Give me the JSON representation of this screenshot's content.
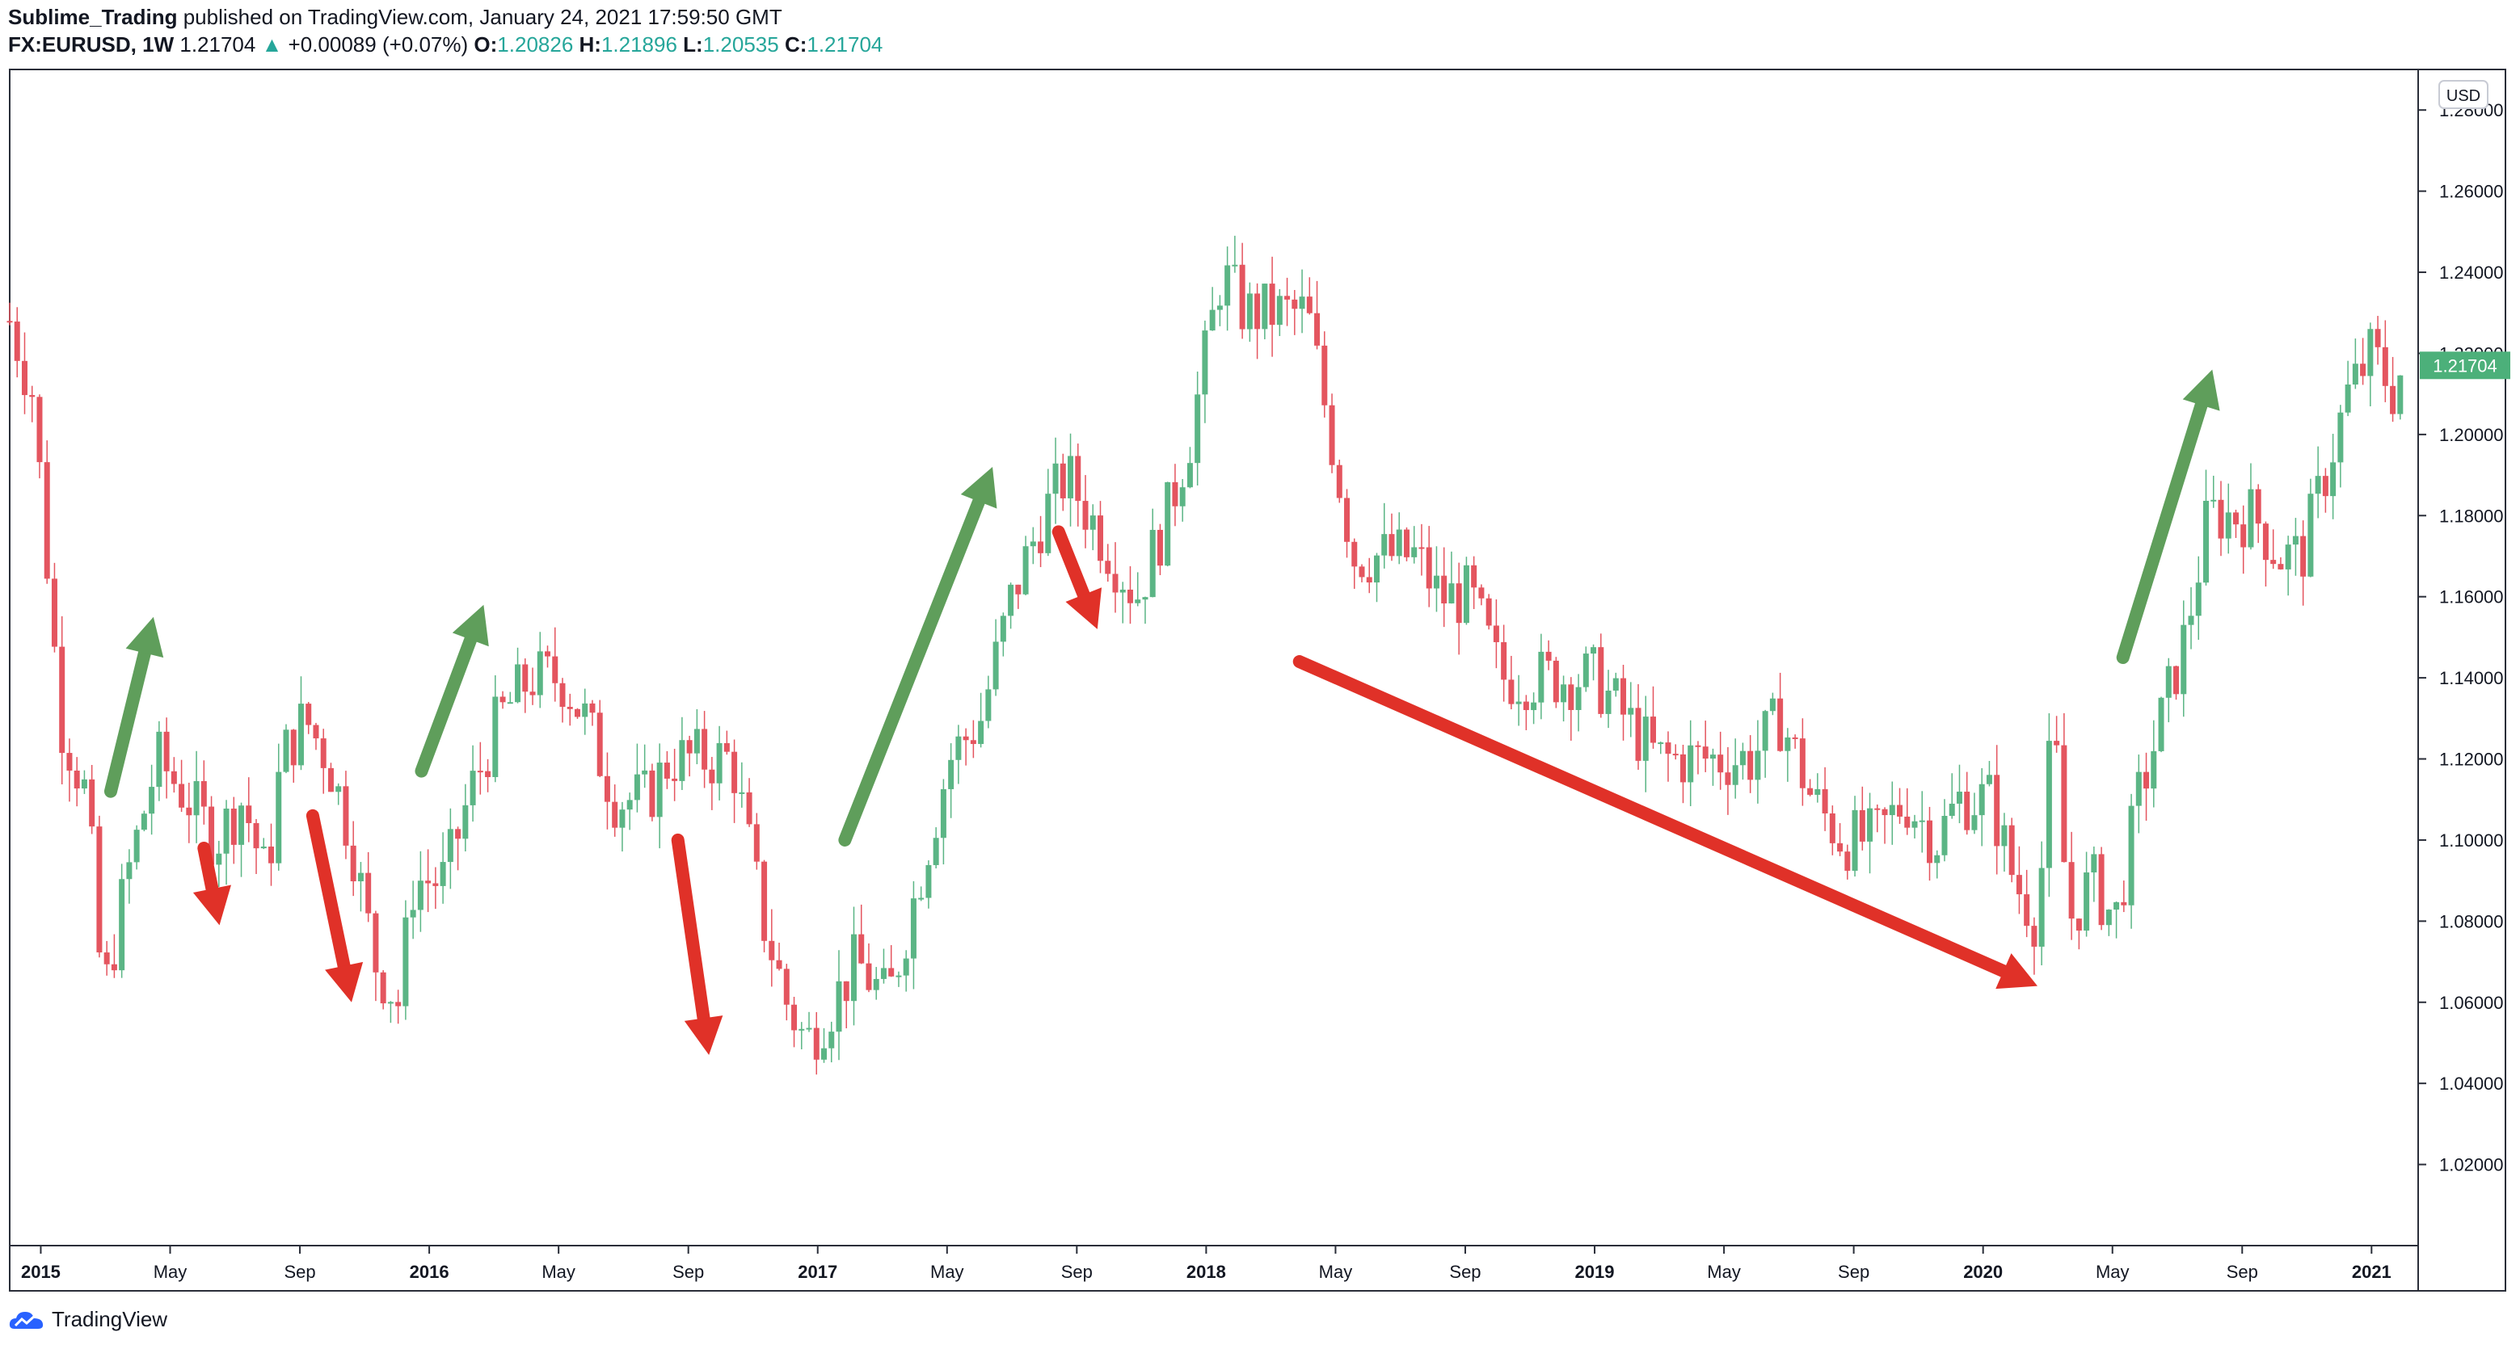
{
  "header": {
    "author": "Sublime_Trading",
    "published_text": " published on TradingView.com, January 24, 2021 17:59:50 GMT",
    "symbol": "FX:EURUSD, 1W",
    "last_price": "1.21704",
    "change_arrow": "▲",
    "change": "+0.00089 (+0.07%)",
    "o_label": "O:",
    "o_value": "1.20826",
    "h_label": "H:",
    "h_value": "1.21896",
    "l_label": "L:",
    "l_value": "1.20535",
    "c_label": "C:",
    "c_value": "1.21704"
  },
  "footer": {
    "brand": "TradingView",
    "logo_icon": "tradingview-cloud-icon"
  },
  "colors": {
    "up": "#5bb585",
    "down": "#e4555f",
    "arrow_up": "#5f9e5b",
    "arrow_down": "#e03128",
    "price_tag": "#4cb07a",
    "text": "#131722"
  },
  "chart_data": {
    "type": "candlestick",
    "title": "FX:EURUSD, 1W",
    "currency_label": "USD",
    "current_price_label": "1.21704",
    "ylim": [
      1.0,
      1.29
    ],
    "y_ticks": [
      "1.28000",
      "1.26000",
      "1.24000",
      "1.22000",
      "1.20000",
      "1.18000",
      "1.16000",
      "1.14000",
      "1.12000",
      "1.10000",
      "1.08000",
      "1.06000",
      "1.04000",
      "1.02000"
    ],
    "x_ticks": [
      {
        "label": "2015",
        "bold": true,
        "t": 2015.0
      },
      {
        "label": "May",
        "bold": false,
        "t": 2015.333
      },
      {
        "label": "Sep",
        "bold": false,
        "t": 2015.667
      },
      {
        "label": "2016",
        "bold": true,
        "t": 2016.0
      },
      {
        "label": "May",
        "bold": false,
        "t": 2016.333
      },
      {
        "label": "Sep",
        "bold": false,
        "t": 2016.667
      },
      {
        "label": "2017",
        "bold": true,
        "t": 2017.0
      },
      {
        "label": "May",
        "bold": false,
        "t": 2017.333
      },
      {
        "label": "Sep",
        "bold": false,
        "t": 2017.667
      },
      {
        "label": "2018",
        "bold": true,
        "t": 2018.0
      },
      {
        "label": "May",
        "bold": false,
        "t": 2018.333
      },
      {
        "label": "Sep",
        "bold": false,
        "t": 2018.667
      },
      {
        "label": "2019",
        "bold": true,
        "t": 2019.0
      },
      {
        "label": "May",
        "bold": false,
        "t": 2019.333
      },
      {
        "label": "Sep",
        "bold": false,
        "t": 2019.667
      },
      {
        "label": "2020",
        "bold": true,
        "t": 2020.0
      },
      {
        "label": "May",
        "bold": false,
        "t": 2020.333
      },
      {
        "label": "Sep",
        "bold": false,
        "t": 2020.667
      },
      {
        "label": "2021",
        "bold": true,
        "t": 2021.0
      }
    ],
    "x_range": [
      2014.92,
      2021.12
    ],
    "weekly_close_path": [
      [
        2014.92,
        1.228
      ],
      [
        2014.98,
        1.21
      ],
      [
        2015.05,
        1.13
      ],
      [
        2015.12,
        1.11
      ],
      [
        2015.16,
        1.06
      ],
      [
        2015.22,
        1.09
      ],
      [
        2015.3,
        1.12
      ],
      [
        2015.38,
        1.11
      ],
      [
        2015.45,
        1.1
      ],
      [
        2015.52,
        1.11
      ],
      [
        2015.58,
        1.09
      ],
      [
        2015.62,
        1.12
      ],
      [
        2015.68,
        1.13
      ],
      [
        2015.74,
        1.12
      ],
      [
        2015.8,
        1.1
      ],
      [
        2015.86,
        1.07
      ],
      [
        2015.92,
        1.06
      ],
      [
        2015.96,
        1.09
      ],
      [
        2016.04,
        1.09
      ],
      [
        2016.1,
        1.11
      ],
      [
        2016.18,
        1.13
      ],
      [
        2016.26,
        1.14
      ],
      [
        2016.34,
        1.14
      ],
      [
        2016.4,
        1.13
      ],
      [
        2016.48,
        1.11
      ],
      [
        2016.56,
        1.11
      ],
      [
        2016.62,
        1.12
      ],
      [
        2016.7,
        1.12
      ],
      [
        2016.78,
        1.12
      ],
      [
        2016.86,
        1.08
      ],
      [
        2016.92,
        1.06
      ],
      [
        2016.97,
        1.05
      ],
      [
        2017.04,
        1.06
      ],
      [
        2017.1,
        1.07
      ],
      [
        2017.18,
        1.06
      ],
      [
        2017.26,
        1.09
      ],
      [
        2017.34,
        1.12
      ],
      [
        2017.42,
        1.13
      ],
      [
        2017.5,
        1.16
      ],
      [
        2017.58,
        1.18
      ],
      [
        2017.64,
        1.19
      ],
      [
        2017.7,
        1.18
      ],
      [
        2017.76,
        1.17
      ],
      [
        2017.82,
        1.16
      ],
      [
        2017.9,
        1.18
      ],
      [
        2017.96,
        1.2
      ],
      [
        2018.04,
        1.24
      ],
      [
        2018.1,
        1.23
      ],
      [
        2018.18,
        1.23
      ],
      [
        2018.26,
        1.23
      ],
      [
        2018.32,
        1.2
      ],
      [
        2018.38,
        1.17
      ],
      [
        2018.46,
        1.17
      ],
      [
        2018.54,
        1.17
      ],
      [
        2018.6,
        1.16
      ],
      [
        2018.68,
        1.16
      ],
      [
        2018.76,
        1.14
      ],
      [
        2018.84,
        1.14
      ],
      [
        2018.92,
        1.14
      ],
      [
        2019.0,
        1.14
      ],
      [
        2019.08,
        1.13
      ],
      [
        2019.16,
        1.12
      ],
      [
        2019.24,
        1.12
      ],
      [
        2019.32,
        1.12
      ],
      [
        2019.4,
        1.12
      ],
      [
        2019.48,
        1.13
      ],
      [
        2019.56,
        1.11
      ],
      [
        2019.64,
        1.1
      ],
      [
        2019.72,
        1.1
      ],
      [
        2019.8,
        1.11
      ],
      [
        2019.88,
        1.1
      ],
      [
        2019.94,
        1.11
      ],
      [
        2020.02,
        1.11
      ],
      [
        2020.08,
        1.09
      ],
      [
        2020.14,
        1.08
      ],
      [
        2020.18,
        1.13
      ],
      [
        2020.22,
        1.08
      ],
      [
        2020.28,
        1.09
      ],
      [
        2020.34,
        1.08
      ],
      [
        2020.4,
        1.11
      ],
      [
        2020.46,
        1.13
      ],
      [
        2020.52,
        1.15
      ],
      [
        2020.58,
        1.18
      ],
      [
        2020.64,
        1.18
      ],
      [
        2020.7,
        1.18
      ],
      [
        2020.76,
        1.17
      ],
      [
        2020.82,
        1.17
      ],
      [
        2020.88,
        1.19
      ],
      [
        2020.94,
        1.21
      ],
      [
        2021.0,
        1.22
      ],
      [
        2021.06,
        1.21
      ],
      [
        2021.08,
        1.217
      ]
    ],
    "annotation_arrows": [
      {
        "dir": "up",
        "from": [
          2015.18,
          1.112
        ],
        "to": [
          2015.29,
          1.155
        ]
      },
      {
        "dir": "down",
        "from": [
          2015.42,
          1.098
        ],
        "to": [
          2015.46,
          1.079
        ]
      },
      {
        "dir": "down",
        "from": [
          2015.7,
          1.106
        ],
        "to": [
          2015.8,
          1.06
        ]
      },
      {
        "dir": "up",
        "from": [
          2015.98,
          1.117
        ],
        "to": [
          2016.14,
          1.158
        ]
      },
      {
        "dir": "down",
        "from": [
          2016.64,
          1.1
        ],
        "to": [
          2016.72,
          1.047
        ]
      },
      {
        "dir": "up",
        "from": [
          2017.07,
          1.1
        ],
        "to": [
          2017.45,
          1.192
        ]
      },
      {
        "dir": "down",
        "from": [
          2017.62,
          1.176
        ],
        "to": [
          2017.72,
          1.152
        ]
      },
      {
        "dir": "down",
        "from": [
          2018.24,
          1.144
        ],
        "to": [
          2020.14,
          1.064
        ]
      },
      {
        "dir": "up",
        "from": [
          2020.36,
          1.145
        ],
        "to": [
          2020.59,
          1.216
        ]
      }
    ]
  }
}
